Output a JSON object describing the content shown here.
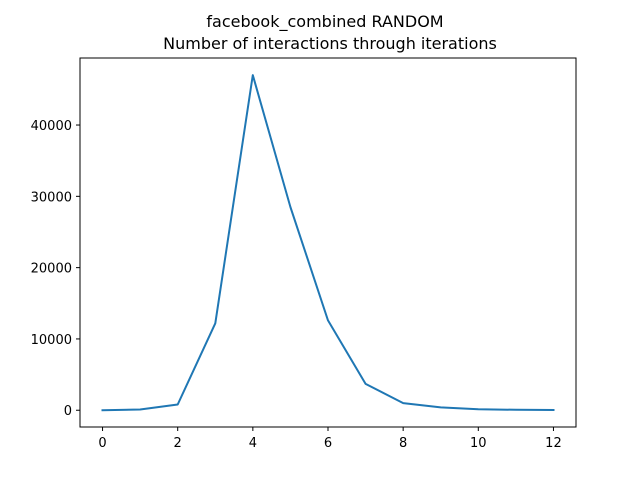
{
  "chart_data": {
    "type": "line",
    "title_line1": "facebook_combined RANDOM",
    "title_line2": "Number of interactions through iterations",
    "xlabel": "",
    "ylabel": "",
    "xlim": [
      -0.6,
      12.6
    ],
    "ylim": [
      -2350,
      49400
    ],
    "x_ticks": [
      0,
      2,
      4,
      6,
      8,
      10,
      12
    ],
    "y_ticks": [
      0,
      10000,
      20000,
      30000,
      40000
    ],
    "grid": false,
    "series": [
      {
        "color": "#1f77b4",
        "x": [
          0,
          1,
          2,
          3,
          4,
          5,
          6,
          7,
          8,
          9,
          10,
          11,
          12
        ],
        "y": [
          0,
          100,
          800,
          12200,
          47000,
          28500,
          12600,
          3700,
          1000,
          400,
          150,
          60,
          30
        ]
      }
    ]
  }
}
